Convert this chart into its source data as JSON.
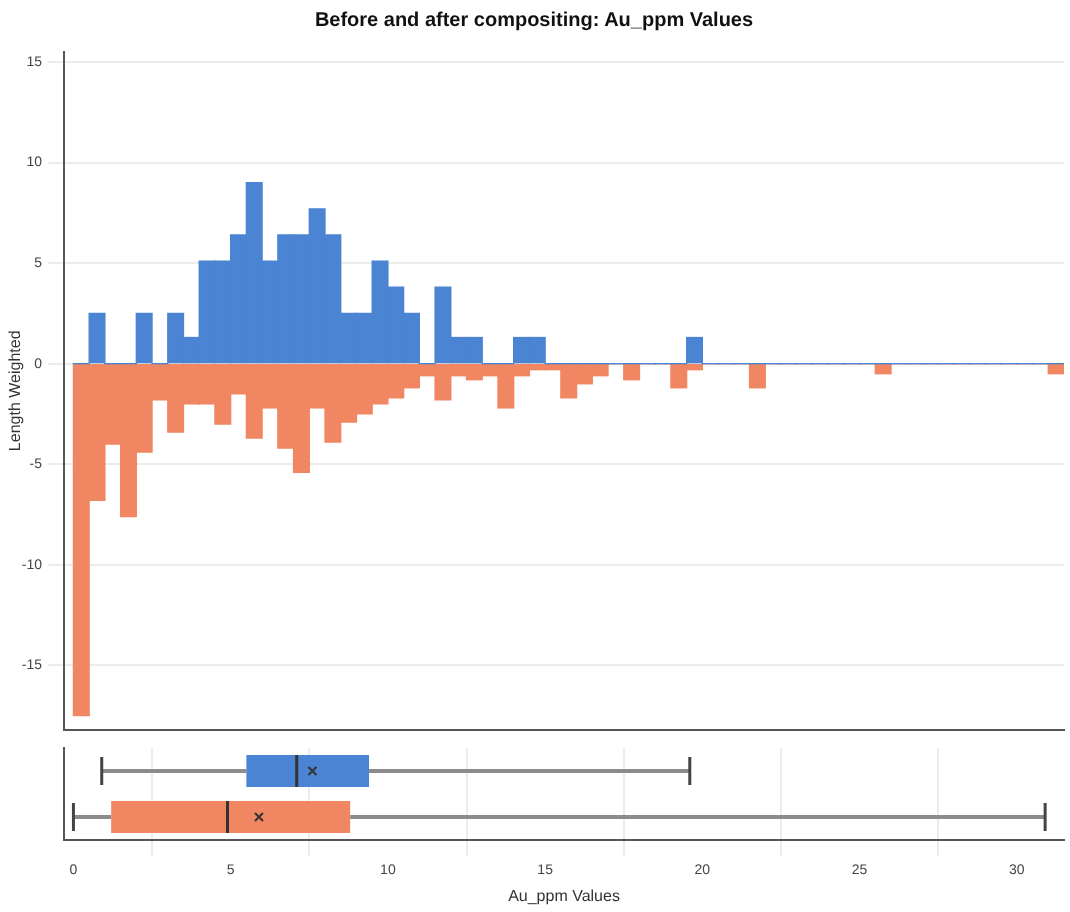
{
  "chart_data": [
    {
      "type": "histogram",
      "title": "Before and after compositing: Au_ppm Values",
      "ylabel": "Length Weighted",
      "bins": [
        0,
        0.5,
        1,
        1.5,
        2,
        2.5,
        3,
        3.5,
        4,
        4.5,
        5,
        5.5,
        6,
        6.5,
        7,
        7.5,
        8,
        8.5,
        9,
        9.5,
        10,
        10.5,
        11,
        11.5,
        12,
        12.5,
        13,
        13.5,
        14,
        14.5,
        15,
        15.5,
        16,
        16.5,
        17,
        17.5,
        18,
        18.5,
        19,
        19.5,
        20,
        20.5,
        21,
        21.5,
        22,
        22.5,
        23,
        23.5,
        24,
        24.5,
        25,
        25.5,
        26,
        26.5,
        27,
        27.5,
        28,
        28.5,
        29,
        29.5,
        30,
        30.5,
        31,
        31.5
      ],
      "series": [
        {
          "color": "#4a84d2",
          "values": [
            0,
            2.5,
            0,
            0,
            2.5,
            0,
            2.5,
            1.3,
            5.1,
            5.1,
            6.4,
            9.0,
            5.1,
            6.4,
            6.4,
            7.7,
            6.4,
            2.5,
            2.5,
            5.1,
            3.8,
            2.5,
            0,
            3.8,
            1.3,
            1.3,
            0,
            0,
            1.3,
            1.3,
            0,
            0,
            0,
            0,
            0,
            0,
            0,
            0,
            0,
            1.3,
            0,
            0,
            0,
            0,
            0,
            0,
            0,
            0,
            0,
            0,
            0,
            0,
            0,
            0,
            0,
            0,
            0,
            0,
            0,
            0,
            0,
            0,
            0
          ]
        },
        {
          "color": "#f08762",
          "values": [
            -17.5,
            -6.8,
            -4.0,
            -7.6,
            -4.4,
            -1.8,
            -3.4,
            -2.0,
            -2.0,
            -3.0,
            -1.5,
            -3.7,
            -2.2,
            -4.2,
            -5.4,
            -2.2,
            -3.9,
            -2.9,
            -2.5,
            -2.0,
            -1.7,
            -1.2,
            -0.6,
            -1.8,
            -0.6,
            -0.8,
            -0.6,
            -2.2,
            -0.6,
            -0.3,
            -0.3,
            -1.7,
            -1.0,
            -0.6,
            0,
            -0.8,
            0,
            0,
            -1.2,
            -0.3,
            0,
            0,
            0,
            -1.2,
            0,
            0,
            0,
            0,
            0,
            0,
            0,
            -0.5,
            0,
            0,
            0,
            0,
            0,
            0,
            0,
            0,
            0,
            0,
            -0.5
          ]
        }
      ],
      "xlim": [
        -0.3,
        31.5
      ],
      "ylim": [
        -18.2,
        15.5
      ],
      "yticks": [
        -15,
        -10,
        -5,
        0,
        5,
        10,
        15
      ],
      "grid": true,
      "tick_labels": "y"
    },
    {
      "type": "box",
      "orientation": "horizontal",
      "xlabel": "Au_ppm Values",
      "categories": [
        null,
        null
      ],
      "boxes": [
        {
          "low": 0.9,
          "q1": 5.5,
          "median": 7.1,
          "q3": 9.4,
          "high": 19.6,
          "mean": 7.6
        },
        {
          "low": 0,
          "q1": 1.2,
          "median": 4.9,
          "q3": 8.8,
          "high": 30.9,
          "mean": 5.9
        }
      ],
      "colors": [
        "#4a84d2",
        "#f08762"
      ],
      "xlim": [
        -0.3,
        31.5
      ],
      "xticks": [
        0,
        5,
        10,
        15,
        20,
        25,
        30
      ],
      "grid": "x",
      "tick_labels": "x"
    }
  ]
}
